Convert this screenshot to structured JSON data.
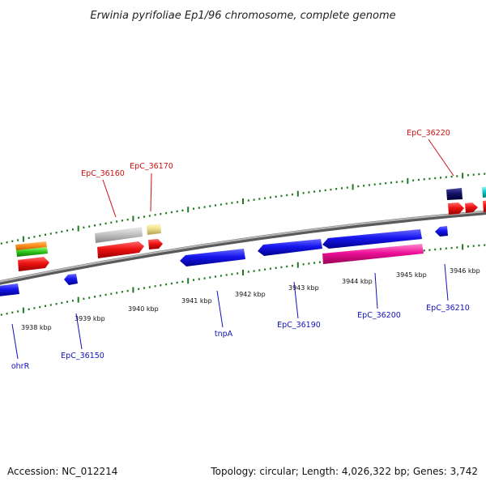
{
  "title": "Erwinia pyrifoliae Ep1/96 chromosome, complete genome",
  "accession_label": "Accession: NC_012214",
  "summary_label": "Topology: circular; Length: 4,026,322 bp; Genes: 3,742",
  "colors": {
    "backbone": "#8a8a8a",
    "tick": "#1e7a1e",
    "label_red": "#cc1111",
    "label_blue": "#1111bb"
  },
  "kbp_ticks": [
    "3938 kbp",
    "3939 kbp",
    "3940 kbp",
    "3941 kbp",
    "3942 kbp",
    "3943 kbp",
    "3944 kbp",
    "3945 kbp",
    "3946 kbp"
  ],
  "gene_labels": {
    "top": [
      "EpC_36220",
      "EpC_36160",
      "EpC_36170"
    ],
    "bottom": [
      "ohrR",
      "EpC_36150",
      "tnpA",
      "EpC_36190",
      "EpC_36200",
      "EpC_36210"
    ]
  }
}
